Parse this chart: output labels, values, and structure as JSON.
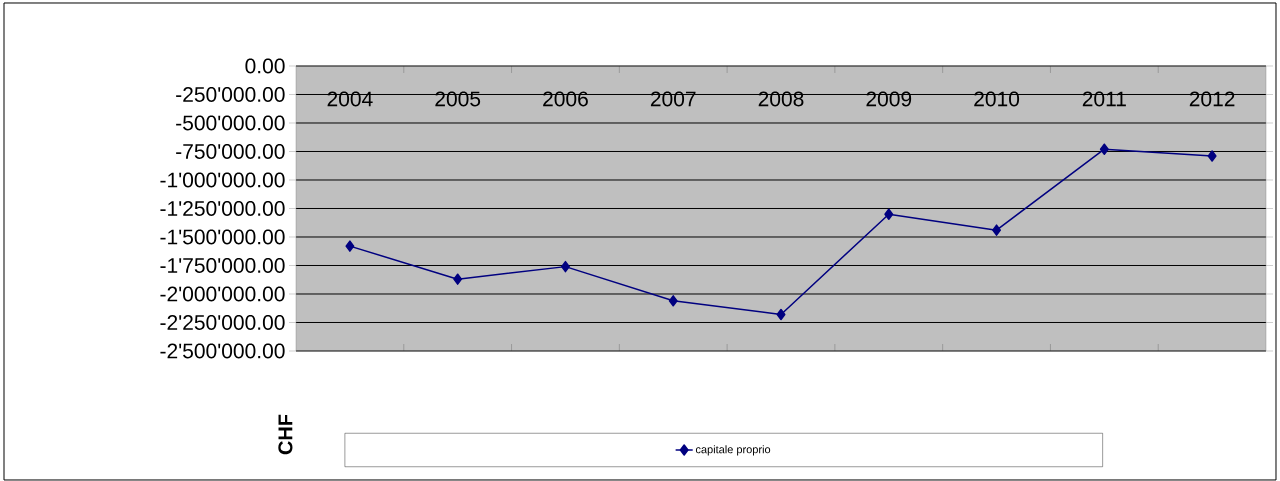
{
  "chart_data": {
    "type": "line",
    "ylabel": "CHF",
    "categories": [
      "2004",
      "2005",
      "2006",
      "2007",
      "2008",
      "2009",
      "2010",
      "2011",
      "2012"
    ],
    "series": [
      {
        "name": "capitale proprio",
        "color": "#000080",
        "values": [
          -1580000,
          -1870000,
          -1760000,
          -2060000,
          -2180000,
          -1300000,
          -1440000,
          -730000,
          -790000
        ]
      }
    ],
    "ylim": [
      -2500000,
      0
    ],
    "yticks": [
      {
        "value": 0,
        "label": "0.00"
      },
      {
        "value": -250000,
        "label": "-250'000.00"
      },
      {
        "value": -500000,
        "label": "-500'000.00"
      },
      {
        "value": -750000,
        "label": "-750'000.00"
      },
      {
        "value": -1000000,
        "label": "-1'000'000.00"
      },
      {
        "value": -1250000,
        "label": "-1'250'000.00"
      },
      {
        "value": -1500000,
        "label": "-1'500'000.00"
      },
      {
        "value": -1750000,
        "label": "-1'750'000.00"
      },
      {
        "value": -2000000,
        "label": "-2'000'000.00"
      },
      {
        "value": -2250000,
        "label": "-2'250'000.00"
      },
      {
        "value": -2500000,
        "label": "-2'500'000.00"
      }
    ],
    "grid": "y",
    "legend": "bottom",
    "marker": "diamond",
    "line_style": "solid"
  }
}
